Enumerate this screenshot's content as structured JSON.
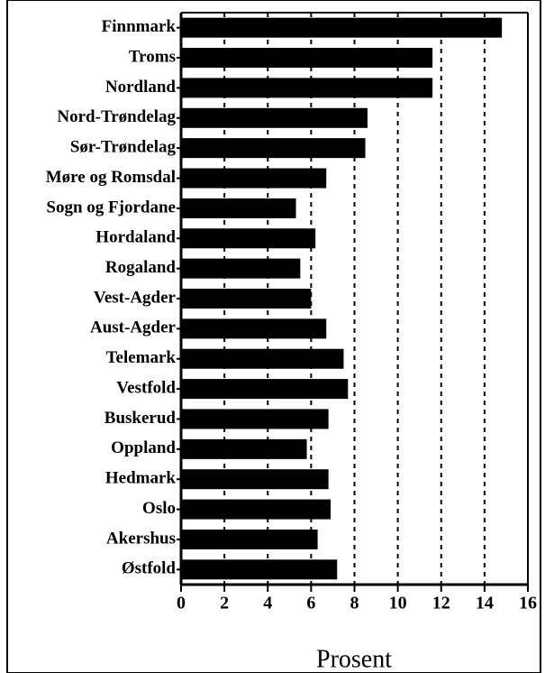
{
  "chart_data": {
    "type": "barh",
    "xlabel": "Prosent",
    "categories": [
      "Finnmark",
      "Troms",
      "Nordland",
      "Nord-Trøndelag",
      "Sør-Trøndelag",
      "Møre og Romsdal",
      "Sogn og Fjordane",
      "Hordaland",
      "Rogaland",
      "Vest-Agder",
      "Aust-Agder",
      "Telemark",
      "Vestfold",
      "Buskerud",
      "Oppland",
      "Hedmark",
      "Oslo",
      "Akershus",
      "Østfold"
    ],
    "values": [
      14.8,
      11.6,
      11.6,
      8.6,
      8.5,
      6.7,
      5.3,
      6.2,
      5.5,
      6.0,
      6.7,
      7.5,
      7.7,
      6.8,
      5.8,
      6.8,
      6.9,
      6.3,
      7.2
    ],
    "color": "#000000",
    "xlim": [
      0,
      16
    ],
    "xticks": [
      0,
      2,
      4,
      6,
      8,
      10,
      12,
      14,
      16
    ],
    "grid": true
  }
}
